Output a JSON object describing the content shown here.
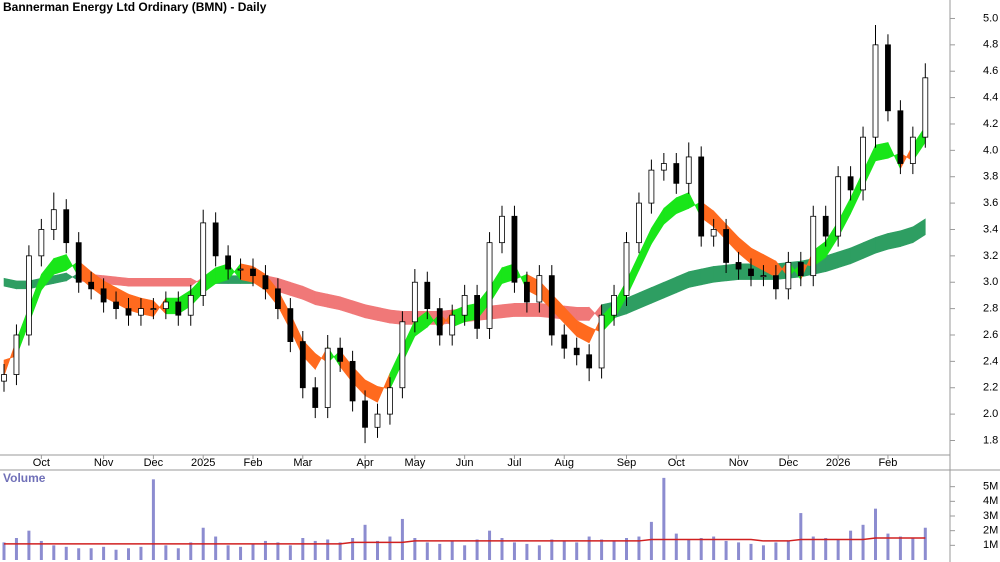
{
  "chart_data": [
    {
      "type": "candlestick",
      "title": "Bannerman Energy Ltd Ordinary (BMN) - Daily",
      "categories": [
        null,
        null,
        null,
        "Oct",
        null,
        null,
        null,
        null,
        "Nov",
        null,
        null,
        null,
        "Dec",
        null,
        null,
        null,
        "2025",
        null,
        null,
        null,
        "Feb",
        null,
        null,
        null,
        "Mar",
        null,
        null,
        null,
        null,
        "Apr",
        null,
        null,
        null,
        "May",
        null,
        null,
        null,
        "Jun",
        null,
        null,
        null,
        "Jul",
        null,
        null,
        null,
        "Aug",
        null,
        null,
        null,
        null,
        "Sep",
        null,
        null,
        null,
        "Oct",
        null,
        null,
        null,
        null,
        "Nov",
        null,
        null,
        null,
        "Dec",
        null,
        null,
        null,
        "2026",
        null,
        null,
        null,
        "Feb",
        null,
        null,
        null
      ],
      "open": [
        2.25,
        2.3,
        2.6,
        3.2,
        3.4,
        3.55,
        3.3,
        3.0,
        2.95,
        2.85,
        2.8,
        2.75,
        2.8,
        2.8,
        2.85,
        2.75,
        2.9,
        3.45,
        3.2,
        3.1,
        3.1,
        3.05,
        2.95,
        2.8,
        2.55,
        2.2,
        2.05,
        2.5,
        2.4,
        2.1,
        1.9,
        2.0,
        2.2,
        2.7,
        3.0,
        2.8,
        2.6,
        2.75,
        2.9,
        2.65,
        3.3,
        3.5,
        3.0,
        2.85,
        3.05,
        2.6,
        2.5,
        2.45,
        2.35,
        2.75,
        2.9,
        3.3,
        3.6,
        3.85,
        3.9,
        3.75,
        3.95,
        3.35,
        3.4,
        3.15,
        3.1,
        3.05,
        3.05,
        2.95,
        3.15,
        3.05,
        3.5,
        3.35,
        3.8,
        3.7,
        4.1,
        4.8,
        4.3,
        3.9,
        4.1
      ],
      "high": [
        2.38,
        2.68,
        3.28,
        3.48,
        3.68,
        3.63,
        3.38,
        3.08,
        3.03,
        2.93,
        2.88,
        2.88,
        2.88,
        2.93,
        2.93,
        2.98,
        3.55,
        3.53,
        3.28,
        3.18,
        3.18,
        3.13,
        3.03,
        2.88,
        2.63,
        2.28,
        2.6,
        2.58,
        2.48,
        2.18,
        2.08,
        2.28,
        2.78,
        3.1,
        3.08,
        2.88,
        2.83,
        2.98,
        2.98,
        3.38,
        3.58,
        3.58,
        3.08,
        3.13,
        3.13,
        2.68,
        2.58,
        2.53,
        2.83,
        2.98,
        3.38,
        3.68,
        3.93,
        3.98,
        3.98,
        4.06,
        4.03,
        3.48,
        3.48,
        3.23,
        3.18,
        3.13,
        3.13,
        3.23,
        3.23,
        3.58,
        3.58,
        3.88,
        3.88,
        4.18,
        4.95,
        4.88,
        4.38,
        4.18,
        4.66
      ],
      "low": [
        2.17,
        2.22,
        2.52,
        3.12,
        3.32,
        3.22,
        2.92,
        2.87,
        2.77,
        2.72,
        2.67,
        2.67,
        2.72,
        2.72,
        2.67,
        2.67,
        2.82,
        3.12,
        3.02,
        3.02,
        2.97,
        2.87,
        2.72,
        2.47,
        2.12,
        1.97,
        1.97,
        2.32,
        2.02,
        1.78,
        1.82,
        1.92,
        2.12,
        2.62,
        2.72,
        2.52,
        2.52,
        2.67,
        2.57,
        2.57,
        3.22,
        2.92,
        2.77,
        2.77,
        2.52,
        2.42,
        2.37,
        2.25,
        2.27,
        2.67,
        2.82,
        3.22,
        3.52,
        3.77,
        3.67,
        3.67,
        3.27,
        3.27,
        3.07,
        3.02,
        2.97,
        2.97,
        2.87,
        2.87,
        2.97,
        2.97,
        3.27,
        3.27,
        3.62,
        3.62,
        4.02,
        4.22,
        3.82,
        3.82,
        4.02
      ],
      "close": [
        2.3,
        2.6,
        3.2,
        3.4,
        3.55,
        3.3,
        3.0,
        2.95,
        2.85,
        2.8,
        2.75,
        2.8,
        2.8,
        2.85,
        2.75,
        2.9,
        3.45,
        3.2,
        3.1,
        3.1,
        3.05,
        2.95,
        2.8,
        2.55,
        2.2,
        2.05,
        2.5,
        2.4,
        2.1,
        1.9,
        2.0,
        2.2,
        2.7,
        3.0,
        2.8,
        2.6,
        2.75,
        2.9,
        2.65,
        3.3,
        3.5,
        3.0,
        2.85,
        3.05,
        2.6,
        2.5,
        2.45,
        2.35,
        2.75,
        2.9,
        3.3,
        3.6,
        3.85,
        3.9,
        3.75,
        3.95,
        3.35,
        3.4,
        3.15,
        3.1,
        3.05,
        3.05,
        2.95,
        3.15,
        3.05,
        3.5,
        3.35,
        3.8,
        3.7,
        4.1,
        4.8,
        4.3,
        3.9,
        4.1,
        4.55
      ],
      "up_color": "#ffffff",
      "down_color": "#000000",
      "ribbons": [
        {
          "up_color": "#2e9e62",
          "down_color": "#f07878",
          "fast": [
            3.03,
            3.01,
            3.01,
            3.03,
            3.05,
            3.07,
            3.01,
            3.0,
            2.99,
            2.98,
            2.97,
            2.97,
            2.97,
            2.97,
            2.97,
            2.97,
            3.04,
            3.05,
            3.05,
            3.05,
            3.05,
            2.95,
            2.93,
            2.9,
            2.87,
            2.83,
            2.81,
            2.79,
            2.76,
            2.73,
            2.71,
            2.69,
            2.68,
            2.68,
            2.68,
            2.68,
            2.69,
            2.7,
            2.71,
            2.72,
            2.73,
            2.74,
            2.74,
            2.74,
            2.73,
            2.72,
            2.71,
            2.71,
            2.83,
            2.85,
            2.88,
            2.92,
            2.96,
            3.0,
            3.04,
            3.08,
            3.1,
            3.12,
            3.13,
            3.14,
            3.14,
            3.14,
            3.14,
            3.15,
            3.16,
            3.18,
            3.2,
            3.23,
            3.26,
            3.3,
            3.34,
            3.37,
            3.39,
            3.42,
            3.48
          ],
          "slow": [
            2.97,
            2.95,
            2.95,
            2.97,
            2.99,
            3.01,
            3.07,
            3.06,
            3.05,
            3.04,
            3.03,
            3.03,
            3.03,
            3.03,
            3.03,
            3.03,
            2.98,
            2.99,
            2.99,
            2.99,
            2.99,
            3.05,
            3.03,
            3.0,
            2.97,
            2.93,
            2.91,
            2.89,
            2.86,
            2.83,
            2.81,
            2.79,
            2.78,
            2.78,
            2.78,
            2.78,
            2.79,
            2.8,
            2.81,
            2.82,
            2.83,
            2.84,
            2.84,
            2.84,
            2.83,
            2.82,
            2.81,
            2.81,
            2.71,
            2.73,
            2.76,
            2.8,
            2.84,
            2.88,
            2.92,
            2.96,
            2.98,
            3.0,
            3.01,
            3.02,
            3.02,
            3.02,
            3.02,
            3.03,
            3.04,
            3.06,
            3.08,
            3.11,
            3.14,
            3.18,
            3.22,
            3.25,
            3.27,
            3.3,
            3.36
          ]
        },
        {
          "up_color": "#19e619",
          "down_color": "#ff6a1e",
          "fast": [
            2.29,
            2.56,
            2.81,
            3.06,
            3.18,
            3.21,
            3.04,
            2.96,
            2.89,
            2.84,
            2.79,
            2.76,
            2.74,
            2.88,
            2.88,
            2.94,
            3.04,
            3.11,
            3.14,
            3.02,
            3.0,
            2.94,
            2.82,
            2.64,
            2.44,
            2.34,
            2.51,
            2.36,
            2.24,
            2.14,
            2.09,
            2.31,
            2.51,
            2.71,
            2.78,
            2.64,
            2.78,
            2.82,
            2.84,
            2.96,
            3.11,
            3.14,
            2.94,
            2.89,
            2.79,
            2.69,
            2.59,
            2.54,
            2.74,
            2.84,
            3.01,
            3.21,
            3.41,
            3.56,
            3.64,
            3.68,
            3.49,
            3.42,
            3.32,
            3.22,
            3.14,
            3.09,
            3.04,
            3.16,
            3.02,
            3.24,
            3.31,
            3.46,
            3.64,
            3.84,
            4.04,
            4.06,
            3.86,
            4.04,
            4.18
          ],
          "slow": [
            2.41,
            2.44,
            2.69,
            2.94,
            3.06,
            3.09,
            3.16,
            3.08,
            3.01,
            2.96,
            2.91,
            2.88,
            2.86,
            2.76,
            2.76,
            2.82,
            2.92,
            2.99,
            3.02,
            3.14,
            3.12,
            3.06,
            2.94,
            2.76,
            2.56,
            2.46,
            2.39,
            2.48,
            2.36,
            2.26,
            2.21,
            2.19,
            2.39,
            2.59,
            2.66,
            2.76,
            2.66,
            2.7,
            2.72,
            2.84,
            2.99,
            3.02,
            3.06,
            3.01,
            2.91,
            2.81,
            2.71,
            2.66,
            2.62,
            2.72,
            2.89,
            3.09,
            3.29,
            3.44,
            3.52,
            3.56,
            3.61,
            3.54,
            3.44,
            3.34,
            3.26,
            3.21,
            3.16,
            3.04,
            3.14,
            3.12,
            3.19,
            3.34,
            3.52,
            3.72,
            3.92,
            3.94,
            3.98,
            3.92,
            4.06
          ]
        }
      ],
      "ylim": [
        1.69,
        5.14
      ],
      "yticks": [
        1.8,
        {
          "value": 2,
          "label": "2.0"
        },
        2.2,
        2.4,
        2.6,
        2.8,
        {
          "value": 3,
          "label": "3.0"
        },
        3.2,
        3.4,
        3.6,
        3.8,
        {
          "value": 4,
          "label": "4.0"
        },
        4.2,
        4.4,
        4.6,
        4.8,
        {
          "value": 5,
          "label": "5.0"
        }
      ]
    },
    {
      "type": "bar",
      "title": "Volume",
      "color": "#8c8cd0",
      "values": [
        1.2,
        1.5,
        2.0,
        1.3,
        1.0,
        0.9,
        0.8,
        0.8,
        0.9,
        0.7,
        0.8,
        0.9,
        5.5,
        1.0,
        0.8,
        1.2,
        2.2,
        1.6,
        1.0,
        0.9,
        1.1,
        1.3,
        1.2,
        1.0,
        1.5,
        1.3,
        1.4,
        1.2,
        1.5,
        2.4,
        1.3,
        1.6,
        2.8,
        1.5,
        1.2,
        1.1,
        1.3,
        1.0,
        1.4,
        2.0,
        1.5,
        1.2,
        1.1,
        1.0,
        1.4,
        1.3,
        1.2,
        1.6,
        1.4,
        1.3,
        1.5,
        1.6,
        2.6,
        5.6,
        1.8,
        1.4,
        1.5,
        1.6,
        1.3,
        1.2,
        1.1,
        1.0,
        1.2,
        1.3,
        3.2,
        1.6,
        1.5,
        1.4,
        2.0,
        2.4,
        3.5,
        1.8,
        1.6,
        1.5,
        2.2
      ],
      "ma": {
        "color": "#d02020",
        "values": [
          1.1,
          1.1,
          1.1,
          1.1,
          1.1,
          1.1,
          1.1,
          1.1,
          1.1,
          1.1,
          1.1,
          1.1,
          1.1,
          1.1,
          1.1,
          1.1,
          1.1,
          1.1,
          1.1,
          1.1,
          1.1,
          1.1,
          1.1,
          1.1,
          1.1,
          1.1,
          1.1,
          1.1,
          1.2,
          1.2,
          1.2,
          1.2,
          1.2,
          1.3,
          1.3,
          1.3,
          1.3,
          1.3,
          1.3,
          1.3,
          1.3,
          1.3,
          1.3,
          1.3,
          1.3,
          1.3,
          1.3,
          1.3,
          1.3,
          1.3,
          1.3,
          1.3,
          1.4,
          1.4,
          1.4,
          1.4,
          1.4,
          1.4,
          1.4,
          1.4,
          1.4,
          1.3,
          1.3,
          1.3,
          1.4,
          1.4,
          1.4,
          1.4,
          1.4,
          1.4,
          1.5,
          1.5,
          1.5,
          1.5,
          1.5
        ]
      },
      "ylim": [
        0,
        6
      ],
      "yticks": [
        {
          "value": 1,
          "label": "1M"
        },
        {
          "value": 2,
          "label": "2M"
        },
        {
          "value": 3,
          "label": "3M"
        },
        {
          "value": 4,
          "label": "4M"
        },
        {
          "value": 5,
          "label": "5M"
        }
      ]
    }
  ]
}
